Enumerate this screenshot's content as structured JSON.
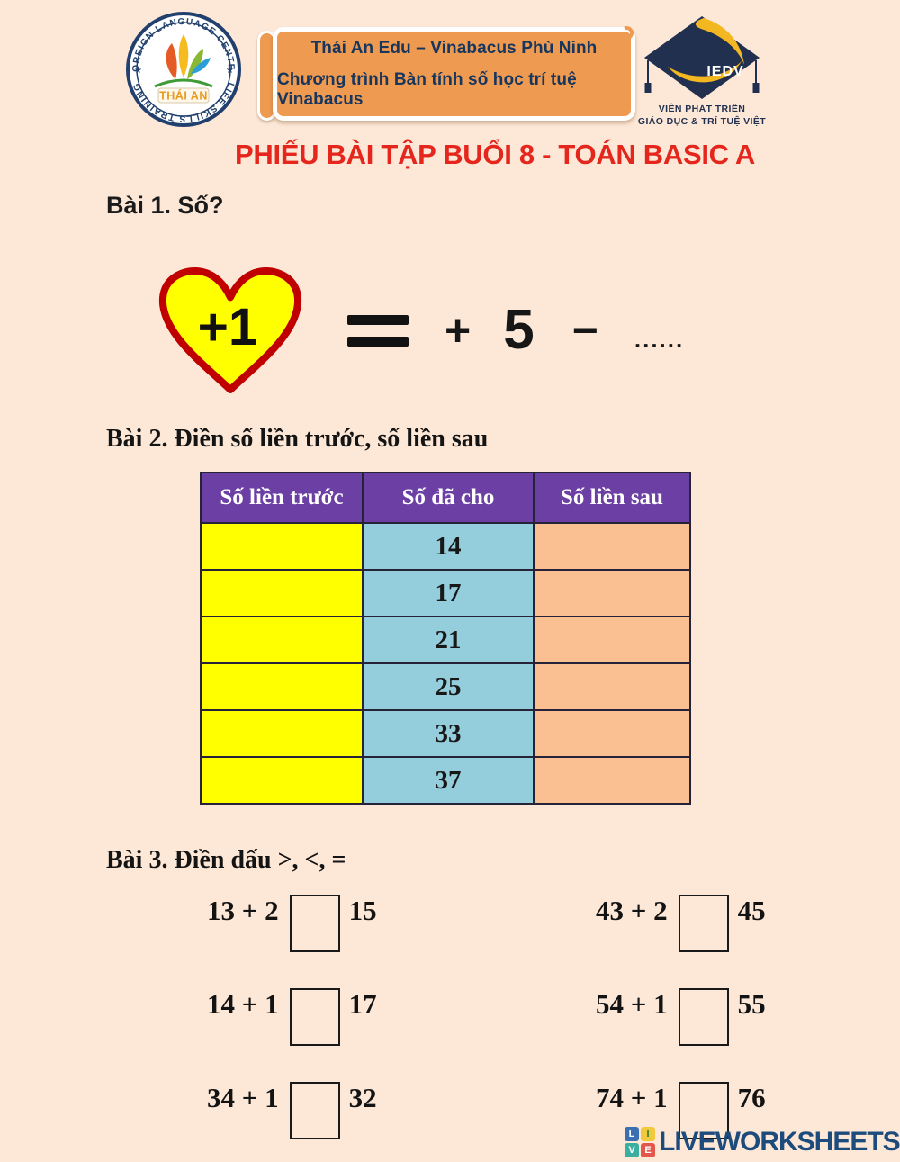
{
  "header": {
    "left_logo": {
      "ring_top": "FOREIGN LANGUAGE CENTER",
      "ring_bottom": "LIFE SKILLS TRAINING",
      "center": "THÁI AN"
    },
    "banner": {
      "line1": "Thái An Edu – Vinabacus Phù Ninh",
      "line2": "Chương trình Bàn tính số học trí tuệ Vinabacus"
    },
    "right_logo": {
      "acronym": "IEDV",
      "caption1": "VIỆN PHÁT TRIỂN",
      "caption2": "GIÁO DỤC & TRÍ TUỆ VIỆT"
    }
  },
  "title": "PHIẾU BÀI TẬP BUỔI 8 - TOÁN BASIC A",
  "exercise1": {
    "heading": "Bài 1. Số?",
    "heart_label": "+1",
    "equation": {
      "equals": "=",
      "plus": "+",
      "number": "5",
      "minus": "−",
      "blank": "......"
    }
  },
  "exercise2": {
    "heading": "Bài 2. Điền số liền trước, số liền sau",
    "table": {
      "headers": [
        "Số liền trước",
        "Số đã cho",
        "Số liền sau"
      ],
      "rows": [
        {
          "given": "14"
        },
        {
          "given": "17"
        },
        {
          "given": "21"
        },
        {
          "given": "25"
        },
        {
          "given": "33"
        },
        {
          "given": "37"
        }
      ]
    }
  },
  "exercise3": {
    "heading": "Bài 3. Điền dấu >, <, =",
    "problems": [
      {
        "expr": "13 + 2",
        "result": "15"
      },
      {
        "expr": "43 + 2",
        "result": "45"
      },
      {
        "expr": "14 + 1",
        "result": "17"
      },
      {
        "expr": "54 + 1",
        "result": "55"
      },
      {
        "expr": "34 + 1",
        "result": "32"
      },
      {
        "expr": "74 + 1",
        "result": "76"
      }
    ]
  },
  "footer": {
    "wordmark": "LIVEWORKSHEETS",
    "tiles": [
      {
        "letter": "L",
        "color": "#3a70b2",
        "text": "#ffffff"
      },
      {
        "letter": "I",
        "color": "#f0c93c",
        "text": "#2e7d32"
      },
      {
        "letter": "V",
        "color": "#3aaea0",
        "text": "#ffffff"
      },
      {
        "letter": "E",
        "color": "#e2574c",
        "text": "#ffffff"
      }
    ]
  },
  "colors": {
    "background": "#fde8d8",
    "banner_orange": "#ef9a51",
    "banner_text_navy": "#17365d",
    "title_red": "#e5261c",
    "heart_yellow": "#ffff00",
    "heart_border_red": "#c00000",
    "table_header_purple": "#6b3fa3",
    "cell_yellow": "#ffff00",
    "cell_blue": "#94cedd",
    "cell_orange": "#fbc091",
    "footer_navy": "#1c4b7c"
  }
}
